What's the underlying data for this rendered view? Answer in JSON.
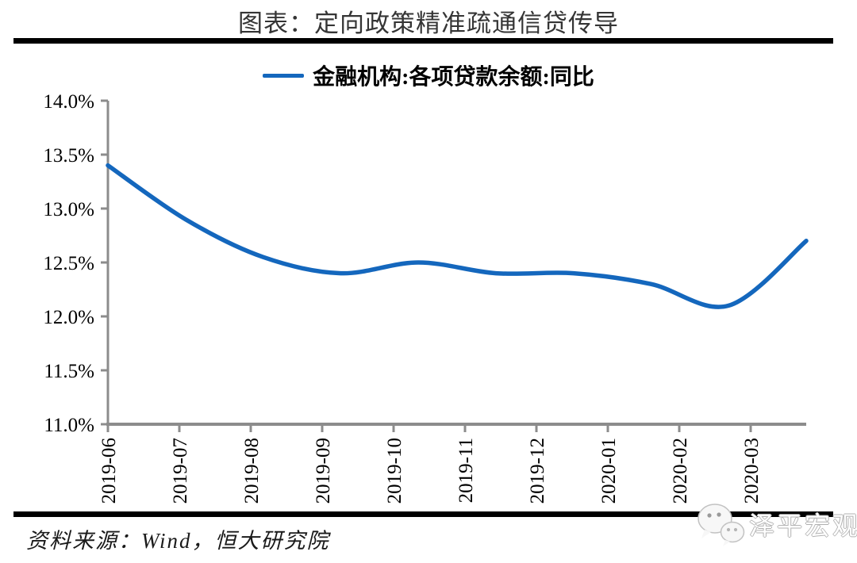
{
  "title": "图表：定向政策精准疏通信贷传导",
  "legend": {
    "label": "金融机构:各项贷款余额:同比",
    "line_color": "#1467BD"
  },
  "source": "资料来源：Wind，恒大研究院",
  "watermark": {
    "icon": "wechat-icon",
    "text": "泽平宏观"
  },
  "colors": {
    "line": "#1467BD",
    "axis": "#8C8C8C",
    "divider_bar": "#000000",
    "tick_text": "#000000",
    "title_text": "#353535"
  },
  "chart_data": {
    "type": "line",
    "smooth": true,
    "title": "图表：定向政策精准疏通信贷传导",
    "x": [
      "2019-06",
      "2019-07",
      "2019-08",
      "2019-09",
      "2019-10",
      "2019-11",
      "2019-12",
      "2020-01",
      "2020-02",
      "2020-03"
    ],
    "series": [
      {
        "name": "金融机构:各项贷款余额:同比",
        "color": "#1467BD",
        "values": [
          13.4,
          12.9,
          12.55,
          12.4,
          12.5,
          12.4,
          12.4,
          12.3,
          12.1,
          12.7
        ]
      }
    ],
    "ylim": [
      11.0,
      14.0
    ],
    "y_tick_labels": [
      "14.0%",
      "13.5%",
      "13.0%",
      "12.5%",
      "12.0%",
      "11.5%",
      "11.0%"
    ],
    "x_label_rotation": 90,
    "grid": false,
    "legend_position": "top",
    "axis_color": "#8C8C8C"
  }
}
